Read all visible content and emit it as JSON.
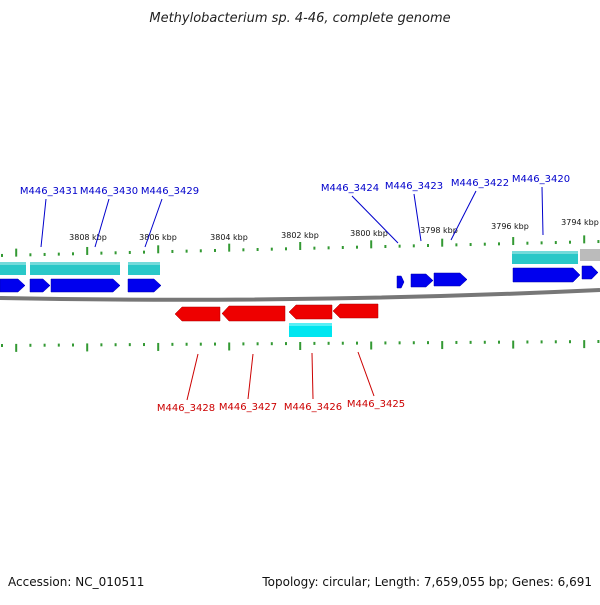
{
  "title": "Methylobacterium sp. 4-46, complete genome",
  "footer": {
    "accession": "Accession: NC_010511",
    "summary": "Topology: circular; Length: 7,659,055 bp; Genes: 6,691"
  },
  "colors": {
    "forward_cds": "#0000ee",
    "reverse_cds": "#ee0000",
    "forward_feature": "#2ac8c8",
    "reverse_feature": "#00e6f0",
    "ticks": "#339933",
    "backbone": "#777777",
    "gene_label_top": "#0000cc",
    "gene_label_bottom": "#cc0000"
  },
  "scale": {
    "unit": "kbp",
    "major_ticks": [
      "3808 kbp",
      "3806 kbp",
      "3804 kbp",
      "3802 kbp",
      "3800 kbp",
      "3798 kbp",
      "3796 kbp",
      "3794 kbp"
    ]
  },
  "genes_top": [
    "M446_3431",
    "M446_3430",
    "M446_3429",
    "M446_3424",
    "M446_3423",
    "M446_3422",
    "M446_3420"
  ],
  "genes_bottom": [
    "M446_3428",
    "M446_3427",
    "M446_3426",
    "M446_3425"
  ]
}
